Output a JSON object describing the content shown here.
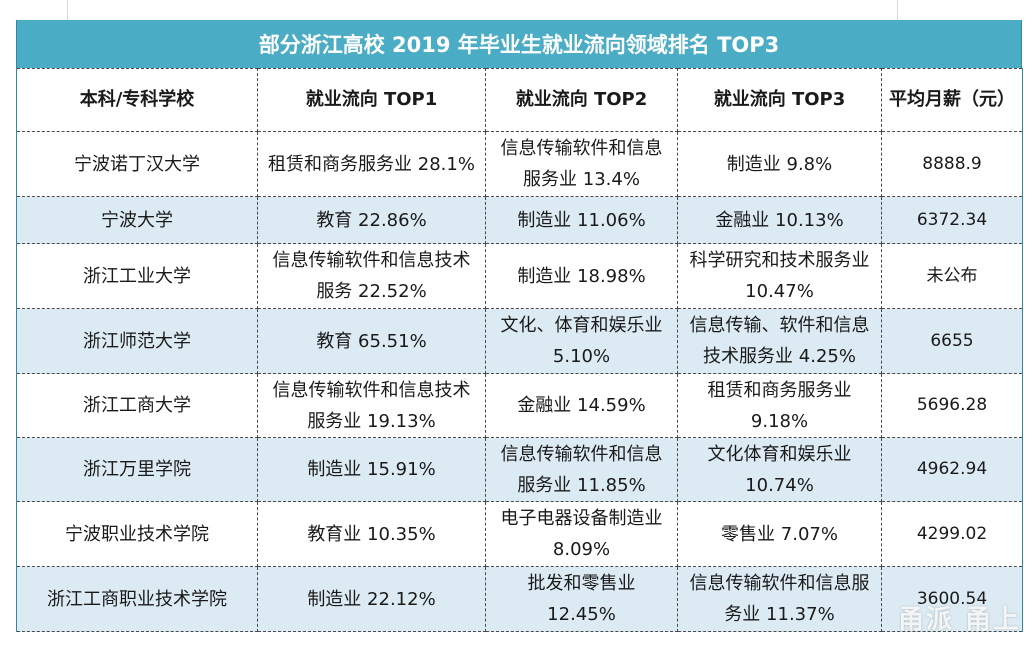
{
  "title": "部分浙江高校 2019 年毕业生就业流向领域排名 TOP3",
  "headers": [
    "本科/专科学校",
    "就业流向 TOP1",
    "就业流向 TOP2",
    "就业流向 TOP3",
    "平均月薪（元）"
  ],
  "rows": [
    {
      "school": "宁波诺丁汉大学",
      "top1": "租赁和商务服务业 28.1%",
      "top2": "信息传输软件和信息服务业 13.4%",
      "top3": "制造业 9.8%",
      "salary": "8888.9"
    },
    {
      "school": "宁波大学",
      "top1": "教育 22.86%",
      "top2": "制造业 11.06%",
      "top3": "金融业 10.13%",
      "salary": "6372.34"
    },
    {
      "school": "浙江工业大学",
      "top1": "信息传输软件和信息技术服务 22.52%",
      "top2": "制造业 18.98%",
      "top3": "科学研究和技术服务业 10.47%",
      "salary": "未公布"
    },
    {
      "school": "浙江师范大学",
      "top1": "教育 65.51%",
      "top2": "文化、体育和娱乐业 5.10%",
      "top3": "信息传输、软件和信息技术服务业 4.25%",
      "salary": "6655"
    },
    {
      "school": "浙江工商大学",
      "top1": "信息传输软件和信息技术服务业 19.13%",
      "top2": "金融业 14.59%",
      "top3": "租赁和商务服务业 9.18%",
      "salary": "5696.28"
    },
    {
      "school": "浙江万里学院",
      "top1": "制造业 15.91%",
      "top2": "信息传输软件和信息服务业 11.85%",
      "top3": "文化体育和娱乐业 10.74%",
      "salary": "4962.94"
    },
    {
      "school": "宁波职业技术学院",
      "top1": "教育业 10.35%",
      "top2": "电子电器设备制造业 8.09%",
      "top3": "零售业 7.07%",
      "salary": "4299.02"
    },
    {
      "school": "浙江工商职业技术学院",
      "top1": "制造业 22.12%",
      "top2": "批发和零售业 12.45%",
      "top3": "信息传输软件和信息服务业 11.37%",
      "salary": "3600.54"
    }
  ],
  "watermark": "甬派 甬上",
  "colors": {
    "header_band": "#4aacc5",
    "stripe": "#dcebf3",
    "border": "#4a4a4a"
  }
}
